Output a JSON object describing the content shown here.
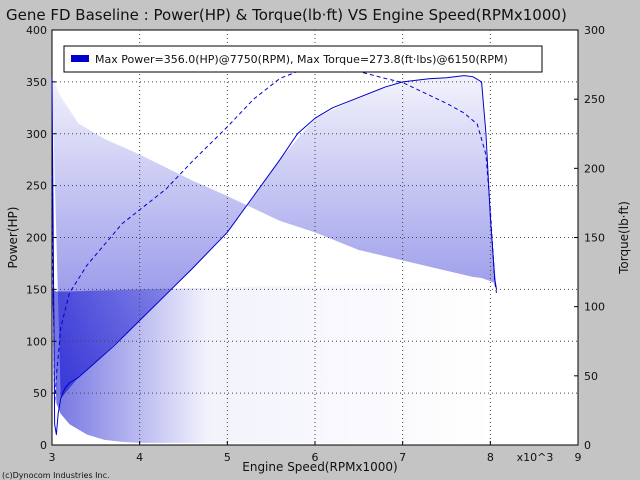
{
  "chart_data": {
    "type": "line",
    "title": "Gene FD Baseline : Power(HP) & Torque(lb·ft) VS Engine Speed(RPMx1000)",
    "xlabel": "Engine Speed(RPMx1000)",
    "x_multiplier": "x10^3",
    "ylabel_left": "Power(HP)",
    "ylabel_right": "Torque(lb·ft)",
    "xlim": [
      3,
      9
    ],
    "ylim_left": [
      0,
      400
    ],
    "ylim_right": [
      0,
      300
    ],
    "x_ticks": [
      3,
      4,
      5,
      6,
      7,
      8,
      9
    ],
    "y_left_ticks": [
      0,
      50,
      100,
      150,
      200,
      250,
      300,
      350,
      400
    ],
    "y_right_ticks": [
      0,
      50,
      100,
      150,
      200,
      250,
      300
    ],
    "grid": true,
    "legend": {
      "placement": "top-left",
      "text": "Max Power=356.0(HP)@7750(RPM), Max Torque=273.8(ft·lbs)@6150(RPM)",
      "color": "#0000cc"
    },
    "series": [
      {
        "axis": "left",
        "style": "solid",
        "x": [
          3.0,
          3.03,
          3.05,
          3.07,
          3.1,
          3.15,
          3.2,
          3.3,
          3.5,
          3.7,
          4.0,
          4.3,
          4.6,
          5.0,
          5.3,
          5.6,
          5.8,
          6.0,
          6.2,
          6.5,
          6.8,
          7.0,
          7.3,
          7.5,
          7.7,
          7.8,
          7.9,
          7.95,
          8.0,
          8.05,
          8.07
        ],
        "y": [
          355,
          20,
          10,
          30,
          45,
          55,
          60,
          65,
          80,
          95,
          120,
          145,
          170,
          205,
          240,
          275,
          300,
          315,
          325,
          335,
          345,
          350,
          353,
          354,
          356,
          355,
          350,
          300,
          220,
          160,
          150
        ]
      },
      {
        "axis": "right",
        "style": "dashed",
        "x": [
          3.0,
          3.03,
          3.05,
          3.08,
          3.1,
          3.2,
          3.4,
          3.6,
          3.8,
          4.0,
          4.3,
          4.6,
          5.0,
          5.3,
          5.6,
          5.8,
          6.0,
          6.15,
          6.3,
          6.5,
          6.8,
          7.0,
          7.3,
          7.5,
          7.7,
          7.85,
          7.95,
          8.0,
          8.05,
          8.07
        ],
        "y": [
          195,
          30,
          50,
          70,
          85,
          110,
          130,
          145,
          160,
          170,
          185,
          205,
          230,
          250,
          265,
          270,
          273,
          273.8,
          273,
          270,
          265,
          262,
          253,
          247,
          240,
          232,
          210,
          170,
          118,
          110
        ]
      }
    ],
    "fills": [
      {
        "color": "#0000cc",
        "x": [
          3.0,
          3.1,
          3.3,
          3.6,
          4.0,
          4.6,
          5.0,
          5.3,
          5.6,
          6.0,
          6.5,
          7.0,
          7.5,
          7.8,
          7.9,
          8.0,
          8.07
        ],
        "y_top": [
          355,
          336,
          310,
          295,
          280,
          255,
          240,
          228,
          216,
          205,
          188,
          178,
          168,
          162,
          161,
          158,
          155
        ],
        "y_bottom": [
          355,
          45,
          65,
          88,
          120,
          170,
          205,
          240,
          275,
          315,
          335,
          350,
          354,
          355,
          350,
          220,
          150
        ]
      },
      {
        "color": "#0000cc",
        "x": [
          3.0,
          3.05,
          3.1,
          3.2,
          3.4,
          3.6,
          3.8,
          4.0,
          4.3,
          5.0,
          6.0,
          7.0,
          7.5,
          8.0,
          8.07
        ],
        "y_top": [
          150,
          148,
          148,
          148,
          148.5,
          149,
          149.5,
          150,
          150.5,
          152,
          154,
          156,
          157,
          159,
          160
        ],
        "y_bottom": [
          150,
          40,
          30,
          20,
          10,
          5,
          3,
          2,
          2,
          2,
          2,
          2,
          2,
          2,
          2
        ]
      }
    ],
    "copyright": "(c)Dynocom Industries Inc."
  }
}
